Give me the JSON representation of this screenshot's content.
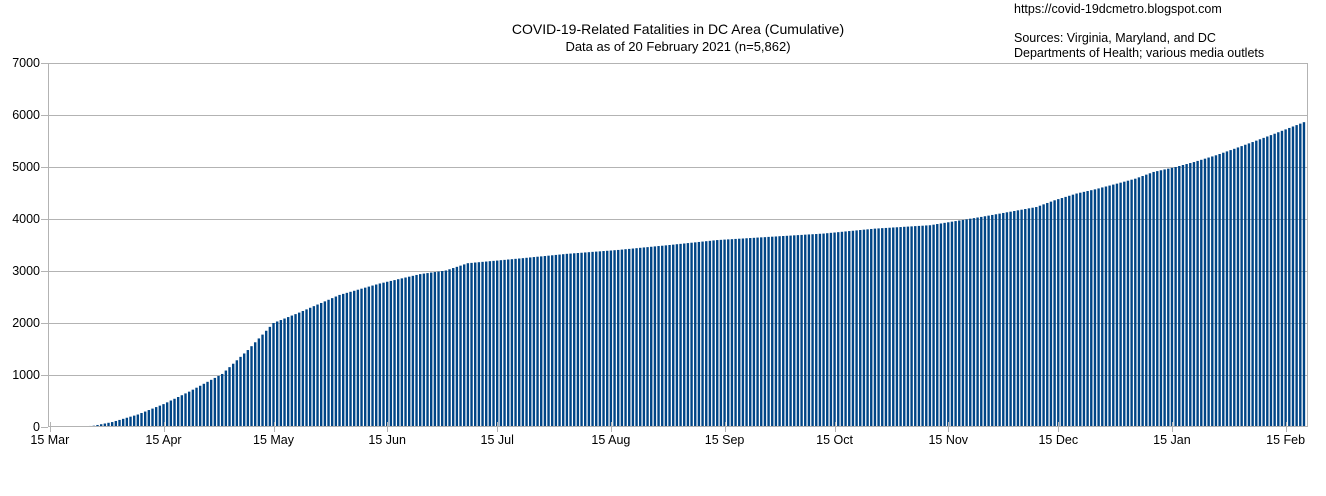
{
  "header": {
    "url": "https://covid-19dcmetro.blogspot.com",
    "sources_line1": "Sources: Virginia, Maryland, and DC",
    "sources_line2": "Departments of Health; various media outlets"
  },
  "chart_data": {
    "type": "bar",
    "title": "COVID-19-Related Fatalities in DC Area (Cumulative)",
    "subtitle": "Data as of 20 February 2021 (n=5,862)",
    "n_total": 5862,
    "start_date": "15 Mar 2020",
    "end_date": "20 Feb 2021",
    "ylim": [
      0,
      7000
    ],
    "grid": true,
    "legend": "none",
    "y_ticks": [
      0,
      1000,
      2000,
      3000,
      4000,
      5000,
      6000,
      7000
    ],
    "x_tick_labels": [
      "15 Mar",
      "15 Apr",
      "15 May",
      "15 Jun",
      "15 Jul",
      "15 Aug",
      "15 Sep",
      "15 Oct",
      "15 Nov",
      "15 Dec",
      "15 Jan",
      "15 Feb"
    ],
    "x_tick_day_index": [
      0,
      31,
      61,
      92,
      122,
      153,
      184,
      214,
      245,
      275,
      306,
      337
    ],
    "colors": {
      "bar": "#004586",
      "gridline": "#b3b3b3",
      "axis": "#b3b3b3",
      "text": "#000000",
      "background": "#ffffff"
    },
    "values": [
      1,
      2,
      3,
      3,
      4,
      5,
      7,
      9,
      11,
      13,
      15,
      20,
      25,
      39,
      53,
      67,
      81,
      95,
      116,
      136,
      157,
      178,
      199,
      219,
      240,
      269,
      297,
      326,
      354,
      383,
      411,
      440,
      474,
      509,
      543,
      577,
      611,
      646,
      680,
      718,
      756,
      793,
      831,
      869,
      907,
      944,
      982,
      1020,
      1086,
      1151,
      1217,
      1283,
      1349,
      1414,
      1480,
      1554,
      1629,
      1703,
      1777,
      1851,
      1926,
      2000,
      2029,
      2057,
      2086,
      2114,
      2143,
      2171,
      2200,
      2231,
      2262,
      2293,
      2324,
      2355,
      2385,
      2416,
      2447,
      2478,
      2509,
      2540,
      2560,
      2580,
      2600,
      2620,
      2640,
      2660,
      2680,
      2700,
      2720,
      2740,
      2760,
      2776,
      2793,
      2809,
      2825,
      2842,
      2858,
      2875,
      2891,
      2907,
      2924,
      2940,
      2950,
      2960,
      2970,
      2980,
      2990,
      3000,
      3010,
      3033,
      3057,
      3080,
      3103,
      3127,
      3150,
      3156,
      3163,
      3169,
      3176,
      3182,
      3189,
      3195,
      3201,
      3208,
      3214,
      3221,
      3227,
      3234,
      3240,
      3247,
      3254,
      3261,
      3268,
      3275,
      3281,
      3288,
      3295,
      3302,
      3309,
      3316,
      3323,
      3330,
      3335,
      3341,
      3346,
      3351,
      3357,
      3362,
      3368,
      3373,
      3378,
      3384,
      3389,
      3394,
      3400,
      3405,
      3412,
      3419,
      3425,
      3432,
      3439,
      3446,
      3453,
      3459,
      3466,
      3473,
      3480,
      3486,
      3493,
      3500,
      3507,
      3515,
      3522,
      3529,
      3537,
      3544,
      3551,
      3558,
      3566,
      3573,
      3580,
      3588,
      3595,
      3599,
      3604,
      3608,
      3612,
      3617,
      3621,
      3625,
      3630,
      3634,
      3638,
      3643,
      3647,
      3651,
      3656,
      3660,
      3664,
      3669,
      3673,
      3677,
      3681,
      3686,
      3690,
      3694,
      3699,
      3703,
      3707,
      3711,
      3716,
      3720,
      3727,
      3734,
      3740,
      3747,
      3754,
      3761,
      3768,
      3774,
      3781,
      3788,
      3795,
      3801,
      3808,
      3815,
      3819,
      3824,
      3828,
      3832,
      3837,
      3841,
      3845,
      3850,
      3854,
      3858,
      3863,
      3867,
      3871,
      3876,
      3880,
      3891,
      3903,
      3914,
      3926,
      3937,
      3949,
      3960,
      3971,
      3983,
      3994,
      4006,
      4017,
      4029,
      4040,
      4053,
      4065,
      4078,
      4091,
      4103,
      4116,
      4129,
      4141,
      4154,
      4167,
      4179,
      4192,
      4205,
      4217,
      4230,
      4256,
      4282,
      4308,
      4334,
      4360,
      4382,
      4403,
      4425,
      4447,
      4468,
      4490,
      4506,
      4522,
      4538,
      4554,
      4570,
      4588,
      4607,
      4625,
      4643,
      4662,
      4680,
      4699,
      4718,
      4737,
      4756,
      4775,
      4801,
      4827,
      4853,
      4879,
      4905,
      4921,
      4937,
      4953,
      4968,
      4984,
      5000,
      5019,
      5038,
      5057,
      5076,
      5095,
      5117,
      5138,
      5160,
      5182,
      5203,
      5225,
      5250,
      5275,
      5300,
      5325,
      5350,
      5376,
      5402,
      5428,
      5454,
      5480,
      5507,
      5533,
      5560,
      5587,
      5613,
      5640,
      5668,
      5696,
      5723,
      5751,
      5779,
      5806,
      5834,
      5862
    ]
  }
}
